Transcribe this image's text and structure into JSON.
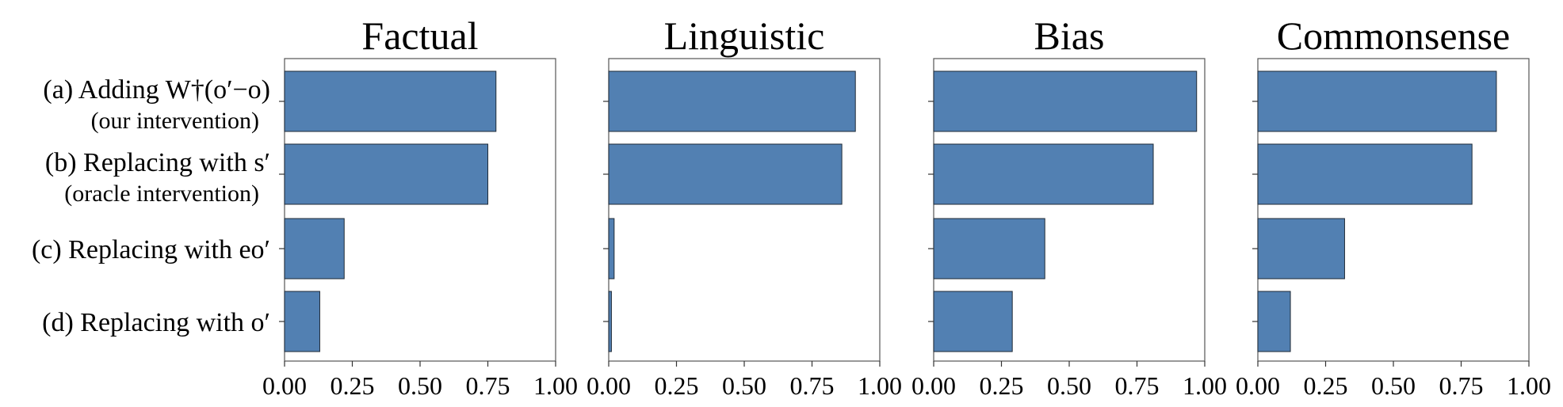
{
  "chart_data": {
    "type": "bar",
    "orientation": "horizontal",
    "bar_color": "#5280b2",
    "bar_edge_color": "#1f2a36",
    "xlim": [
      0,
      1
    ],
    "xticks": [
      "0.00",
      "0.25",
      "0.50",
      "0.75",
      "1.00"
    ],
    "categories": [
      {
        "label": "(a) Adding W†(o′−o)",
        "sublabel": "(our intervention)"
      },
      {
        "label": "(b) Replacing with s′",
        "sublabel": "(oracle intervention)"
      },
      {
        "label": "(c) Replacing with eo′",
        "sublabel": ""
      },
      {
        "label": "(d) Replacing with o′",
        "sublabel": ""
      }
    ],
    "panels": [
      {
        "title": "Factual",
        "values": [
          0.78,
          0.75,
          0.22,
          0.13
        ]
      },
      {
        "title": "Linguistic",
        "values": [
          0.91,
          0.86,
          0.02,
          0.01
        ]
      },
      {
        "title": "Bias",
        "values": [
          0.97,
          0.81,
          0.41,
          0.29
        ]
      },
      {
        "title": "Commonsense",
        "values": [
          0.88,
          0.79,
          0.32,
          0.12
        ]
      }
    ]
  }
}
